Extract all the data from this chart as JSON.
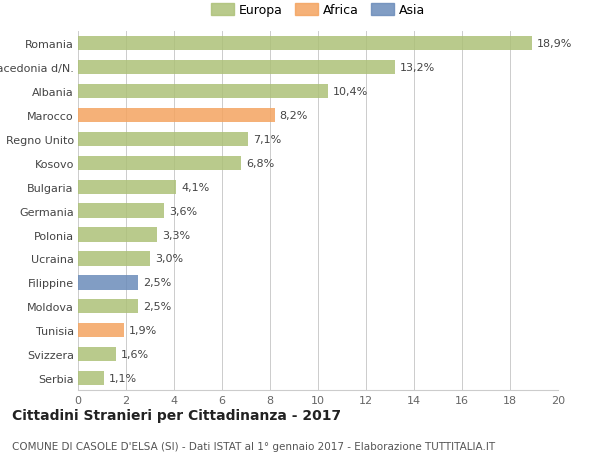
{
  "categories": [
    "Romania",
    "Macedonia d/N.",
    "Albania",
    "Marocco",
    "Regno Unito",
    "Kosovo",
    "Bulgaria",
    "Germania",
    "Polonia",
    "Ucraina",
    "Filippine",
    "Moldova",
    "Tunisia",
    "Svizzera",
    "Serbia"
  ],
  "values": [
    18.9,
    13.2,
    10.4,
    8.2,
    7.1,
    6.8,
    4.1,
    3.6,
    3.3,
    3.0,
    2.5,
    2.5,
    1.9,
    1.6,
    1.1
  ],
  "continents": [
    "Europa",
    "Europa",
    "Europa",
    "Africa",
    "Europa",
    "Europa",
    "Europa",
    "Europa",
    "Europa",
    "Europa",
    "Asia",
    "Europa",
    "Africa",
    "Europa",
    "Europa"
  ],
  "color_europa": "#adc178",
  "color_africa": "#f4a460",
  "color_asia": "#6b8cba",
  "bar_alpha": 0.85,
  "legend_labels": [
    "Europa",
    "Africa",
    "Asia"
  ],
  "legend_colors": [
    "#adc178",
    "#f4a460",
    "#6b8cba"
  ],
  "xlim": [
    0,
    20
  ],
  "xticks": [
    0,
    2,
    4,
    6,
    8,
    10,
    12,
    14,
    16,
    18,
    20
  ],
  "title": "Cittadini Stranieri per Cittadinanza - 2017",
  "subtitle": "COMUNE DI CASOLE D'ELSA (SI) - Dati ISTAT al 1° gennaio 2017 - Elaborazione TUTTITALIA.IT",
  "title_fontsize": 10,
  "subtitle_fontsize": 7.5,
  "label_fontsize": 8,
  "tick_fontsize": 8,
  "bg_color": "#ffffff",
  "grid_color": "#cccccc"
}
